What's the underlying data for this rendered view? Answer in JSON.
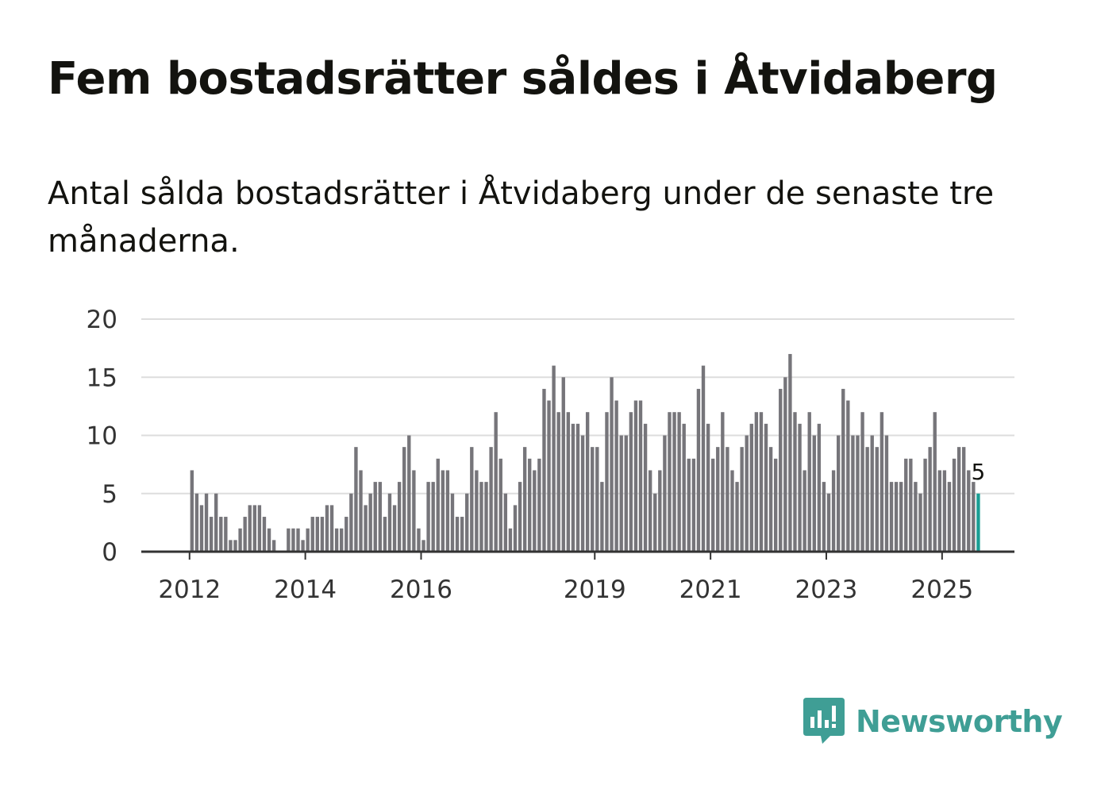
{
  "title": "Fem bostadsrätter såldes i Åtvidaberg",
  "subtitle": "Antal sålda bostadsrätter i Åtvidaberg under de senaste tre månaderna.",
  "brand": {
    "name": "Newsworthy",
    "color": "#3f9e95",
    "icon": "newsworthy-logo-icon"
  },
  "colors": {
    "bar": "#76757a",
    "highlight": "#1a9e94",
    "grid": "#dddddd",
    "axis": "#333333"
  },
  "chart_data": {
    "type": "bar",
    "title": "Fem bostadsrätter såldes i Åtvidaberg",
    "subtitle": "Antal sålda bostadsrätter i Åtvidaberg under de senaste tre månaderna.",
    "xlabel": "",
    "ylabel": "",
    "ylim": [
      0,
      20
    ],
    "yticks": [
      0,
      5,
      10,
      15,
      20
    ],
    "grid": true,
    "xticks": [
      "2012",
      "2014",
      "2016",
      "2019",
      "2021",
      "2023",
      "2025"
    ],
    "xrange": [
      "2011-03",
      "2026-04"
    ],
    "x_start": "2012-01",
    "x_end": "2025-07",
    "values": [
      7,
      5,
      4,
      5,
      3,
      5,
      3,
      3,
      1,
      1,
      2,
      3,
      4,
      4,
      4,
      3,
      2,
      1,
      0,
      0,
      2,
      2,
      2,
      1,
      2,
      3,
      3,
      3,
      4,
      4,
      2,
      2,
      3,
      5,
      9,
      7,
      4,
      5,
      6,
      6,
      3,
      5,
      4,
      6,
      9,
      10,
      7,
      2,
      1,
      6,
      6,
      8,
      7,
      7,
      5,
      3,
      3,
      5,
      9,
      7,
      6,
      6,
      9,
      12,
      8,
      5,
      2,
      4,
      6,
      9,
      8,
      7,
      8,
      14,
      13,
      16,
      12,
      15,
      12,
      11,
      11,
      10,
      12,
      9,
      9,
      6,
      12,
      15,
      13,
      10,
      10,
      12,
      13,
      13,
      11,
      7,
      5,
      7,
      10,
      12,
      12,
      12,
      11,
      8,
      8,
      14,
      16,
      11,
      8,
      9,
      12,
      9,
      7,
      6,
      9,
      10,
      11,
      12,
      12,
      11,
      9,
      8,
      14,
      15,
      17,
      12,
      11,
      7,
      12,
      10,
      11,
      6,
      5,
      7,
      10,
      14,
      13,
      10,
      10,
      12,
      9,
      10,
      9,
      12,
      10,
      6,
      6,
      6,
      8,
      8,
      6,
      5,
      8,
      9,
      12,
      7,
      7,
      6,
      8,
      9,
      9,
      7,
      6,
      5
    ],
    "highlight_last": true,
    "data_labels": [
      {
        "index": "last",
        "text": "5"
      }
    ]
  }
}
